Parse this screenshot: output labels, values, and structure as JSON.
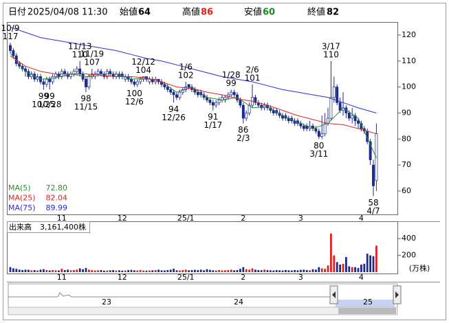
{
  "header": {
    "date_label": "日付",
    "datetime": "2025/04/08 11:30",
    "open_label": "始値",
    "open": 64,
    "high_label": "高値",
    "high": 86,
    "low_label": "安値",
    "low": 60,
    "close_label": "終値",
    "close": 82
  },
  "chart_data": [
    {
      "type": "candlestick",
      "categories": [
        null,
        null,
        null,
        null,
        null,
        null,
        null,
        null,
        null,
        null,
        null,
        null,
        null,
        null,
        null,
        null,
        null,
        "11",
        null,
        null,
        null,
        null,
        null,
        null,
        null,
        null,
        null,
        null,
        null,
        null,
        null,
        null,
        null,
        null,
        null,
        null,
        null,
        "12",
        null,
        null,
        null,
        null,
        null,
        null,
        null,
        null,
        null,
        null,
        null,
        null,
        null,
        null,
        null,
        null,
        null,
        null,
        null,
        null,
        "25/1",
        null,
        null,
        null,
        null,
        null,
        null,
        null,
        null,
        null,
        null,
        null,
        null,
        null,
        null,
        null,
        null,
        null,
        null,
        "2",
        null,
        null,
        null,
        null,
        null,
        null,
        null,
        null,
        null,
        null,
        null,
        null,
        null,
        null,
        null,
        null,
        null,
        null,
        "3",
        null,
        null,
        null,
        null,
        null,
        null,
        null,
        null,
        null,
        null,
        null,
        null,
        null,
        null,
        null,
        null,
        null,
        null,
        null,
        "4",
        null,
        null,
        null,
        null,
        null
      ],
      "candles": {
        "up_color": "#ffffff",
        "down_color": "#1c2a8c",
        "open": [
          116,
          114,
          112,
          109,
          108,
          107,
          106,
          104,
          105,
          103,
          104,
          102,
          101,
          103,
          102,
          104,
          105,
          104,
          106,
          105,
          104,
          105,
          106,
          107,
          105,
          103,
          100,
          104,
          104,
          105,
          106,
          105,
          104,
          106,
          105,
          104,
          105,
          105,
          103,
          104,
          103,
          102,
          101,
          102,
          103,
          104,
          102,
          103,
          102,
          103,
          102,
          101,
          100,
          99,
          98,
          97,
          96,
          98,
          99,
          101,
          100,
          99,
          98,
          98,
          97,
          96,
          95,
          94,
          93,
          94,
          95,
          95,
          96,
          97,
          98,
          97,
          95,
          93,
          88,
          90,
          93,
          96,
          94,
          93,
          92,
          93,
          92,
          91,
          91,
          90,
          89,
          89,
          88,
          88,
          87,
          87,
          86,
          85,
          85,
          84,
          85,
          84,
          83,
          81,
          82,
          86,
          88,
          96,
          100,
          94,
          91,
          92,
          90,
          88,
          89,
          87,
          86,
          84,
          83,
          79,
          70,
          64
        ],
        "high": [
          117,
          115,
          113,
          110,
          109,
          108,
          107,
          106,
          106,
          105,
          105,
          103,
          104,
          104,
          105,
          106,
          106,
          107,
          107,
          106,
          106,
          107,
          108,
          110,
          106,
          104,
          105,
          107,
          106,
          107,
          107,
          106,
          107,
          107,
          106,
          106,
          106,
          106,
          105,
          105,
          104,
          103,
          103,
          104,
          104,
          104,
          104,
          104,
          104,
          103,
          103,
          102,
          101,
          100,
          99,
          98,
          99,
          100,
          102,
          101,
          101,
          100,
          99,
          99,
          98,
          97,
          96,
          95,
          95,
          96,
          97,
          97,
          98,
          99,
          99,
          98,
          96,
          94,
          91,
          94,
          101,
          97,
          95,
          94,
          94,
          94,
          93,
          92,
          92,
          91,
          90,
          90,
          89,
          89,
          88,
          88,
          87,
          86,
          86,
          87,
          86,
          85,
          84,
          89,
          90,
          92,
          110,
          104,
          101,
          96,
          98,
          93,
          91,
          92,
          90,
          88,
          87,
          85,
          84,
          80,
          72,
          86
        ],
        "low": [
          113,
          111,
          108,
          107,
          106,
          104,
          103,
          103,
          102,
          102,
          101,
          99,
          100,
          99,
          101,
          103,
          103,
          103,
          104,
          103,
          103,
          104,
          105,
          104,
          102,
          98,
          99,
          103,
          103,
          104,
          104,
          103,
          103,
          104,
          103,
          103,
          103,
          103,
          102,
          102,
          101,
          100,
          100,
          101,
          102,
          102,
          101,
          101,
          101,
          101,
          100,
          99,
          98,
          97,
          94,
          95,
          95,
          97,
          98,
          99,
          98,
          97,
          96,
          96,
          95,
          94,
          93,
          91,
          92,
          93,
          94,
          94,
          95,
          96,
          96,
          94,
          92,
          86,
          87,
          89,
          92,
          93,
          92,
          91,
          91,
          91,
          90,
          89,
          89,
          88,
          87,
          87,
          86,
          86,
          85,
          85,
          84,
          83,
          83,
          83,
          83,
          82,
          80,
          80,
          81,
          85,
          87,
          94,
          93,
          90,
          89,
          88,
          87,
          86,
          85,
          84,
          83,
          82,
          78,
          70,
          58,
          60
        ],
        "close": [
          114,
          112,
          109,
          108,
          107,
          106,
          104,
          105,
          103,
          104,
          102,
          101,
          103,
          102,
          104,
          105,
          104,
          106,
          105,
          104,
          105,
          106,
          107,
          105,
          103,
          100,
          104,
          105,
          105,
          106,
          105,
          104,
          106,
          105,
          104,
          105,
          104,
          104,
          104,
          103,
          102,
          101,
          102,
          103,
          104,
          103,
          103,
          102,
          103,
          102,
          101,
          100,
          99,
          98,
          97,
          96,
          98,
          99,
          100,
          100,
          99,
          98,
          97,
          97,
          96,
          95,
          94,
          93,
          94,
          95,
          96,
          96,
          97,
          98,
          97,
          95,
          93,
          88,
          90,
          93,
          96,
          94,
          93,
          92,
          93,
          92,
          91,
          90,
          90,
          89,
          88,
          88,
          87,
          87,
          86,
          86,
          85,
          84,
          84,
          85,
          84,
          83,
          81,
          82,
          86,
          88,
          96,
          100,
          94,
          91,
          92,
          90,
          88,
          89,
          87,
          86,
          84,
          83,
          79,
          72,
          62,
          82
        ]
      },
      "ma": {
        "x": [
          0,
          5,
          10,
          15,
          20,
          25,
          30,
          35,
          40,
          45,
          50,
          55,
          60,
          65,
          70,
          75,
          80,
          85,
          90,
          95,
          100,
          105,
          110,
          115,
          121
        ],
        "series": [
          {
            "name": "MA(5)",
            "color": "#2e8b2e",
            "value_label": "72.80",
            "values": [
              113,
              106,
              103,
              103.5,
              105,
              104,
              105,
              105,
              103,
              103.5,
              102,
              98,
              100,
              96,
              95,
              96,
              92,
              92.5,
              89,
              86.5,
              84,
              86,
              92,
              88,
              72.8
            ]
          },
          {
            "name": "MA(25)",
            "color": "#e02020",
            "value_label": "82.04",
            "values": [
              112,
              108,
              106,
              105,
              105,
              105,
              104.5,
              104,
              104,
              103.5,
              102,
              100,
              99.5,
              98,
              97,
              95.5,
              94.5,
              93,
              91,
              89,
              87.5,
              86,
              85.5,
              84,
              82.04
            ]
          },
          {
            "name": "MA(75)",
            "color": "#2a2ae0",
            "value_label": "89.99",
            "values": [
              123,
              121,
              119,
              118,
              117,
              116,
              115,
              114,
              112.5,
              111,
              110,
              108.5,
              107,
              105.5,
              104,
              103,
              102,
              100.5,
              99,
              98,
              97,
              96,
              94,
              92,
              89.99
            ]
          }
        ]
      },
      "annotations": [
        {
          "date": "10/9",
          "value": 117,
          "index": 0,
          "side": "above"
        },
        {
          "date": "10/25",
          "value": 99,
          "index": 11,
          "side": "below"
        },
        {
          "date": "10/28",
          "value": 99,
          "index": 13,
          "side": "below"
        },
        {
          "date": "11/13",
          "value": 110,
          "index": 23,
          "side": "above"
        },
        {
          "date": "11/15",
          "value": 98,
          "index": 25,
          "side": "below"
        },
        {
          "date": "11/19",
          "value": 107,
          "index": 27,
          "side": "above"
        },
        {
          "date": "12/6",
          "value": 100,
          "index": 41,
          "side": "below"
        },
        {
          "date": "12/12",
          "value": 104,
          "index": 44,
          "side": "above"
        },
        {
          "date": "12/26",
          "value": 94,
          "index": 54,
          "side": "below"
        },
        {
          "date": "1/6",
          "value": 102,
          "index": 58,
          "side": "above"
        },
        {
          "date": "1/17",
          "value": 91,
          "index": 67,
          "side": "below"
        },
        {
          "date": "1/28",
          "value": 99,
          "index": 73,
          "side": "above"
        },
        {
          "date": "2/3",
          "value": 86,
          "index": 77,
          "side": "below"
        },
        {
          "date": "2/6",
          "value": 101,
          "index": 80,
          "side": "above"
        },
        {
          "date": "3/11",
          "value": 80,
          "index": 102,
          "side": "below"
        },
        {
          "date": "3/17",
          "value": 110,
          "index": 106,
          "side": "above"
        },
        {
          "date": "4/7",
          "value": 58,
          "index": 120,
          "side": "below"
        }
      ],
      "ylim": [
        51,
        125
      ],
      "yticks": [
        60,
        70,
        80,
        90,
        100,
        110,
        120
      ]
    },
    {
      "type": "bar",
      "title": "出来高",
      "total_label": "3,161,400株",
      "unit": "(万株)",
      "up_color": "#e02020",
      "down_color": "#1c2a8c",
      "flat_color": "#999999",
      "categories": [
        null,
        null,
        null,
        null,
        null,
        null,
        null,
        null,
        null,
        null,
        null,
        null,
        null,
        null,
        null,
        null,
        null,
        "11",
        null,
        null,
        null,
        null,
        null,
        null,
        null,
        null,
        null,
        null,
        null,
        null,
        null,
        null,
        null,
        null,
        null,
        null,
        null,
        "12",
        null,
        null,
        null,
        null,
        null,
        null,
        null,
        null,
        null,
        null,
        null,
        null,
        null,
        null,
        null,
        null,
        null,
        null,
        null,
        null,
        "25/1",
        null,
        null,
        null,
        null,
        null,
        null,
        null,
        null,
        null,
        null,
        null,
        null,
        null,
        null,
        null,
        null,
        null,
        null,
        "2",
        null,
        null,
        null,
        null,
        null,
        null,
        null,
        null,
        null,
        null,
        null,
        null,
        null,
        null,
        null,
        null,
        null,
        null,
        "3",
        null,
        null,
        null,
        null,
        null,
        null,
        null,
        null,
        null,
        null,
        null,
        null,
        null,
        null,
        null,
        null,
        null,
        null,
        null,
        "4",
        null,
        null,
        null,
        null,
        null
      ],
      "values": [
        60,
        45,
        40,
        30,
        25,
        30,
        28,
        22,
        25,
        20,
        30,
        35,
        25,
        20,
        25,
        22,
        20,
        40,
        25,
        30,
        22,
        25,
        30,
        45,
        35,
        50,
        30,
        25,
        20,
        22,
        25,
        18,
        20,
        22,
        25,
        20,
        22,
        18,
        20,
        25,
        28,
        22,
        20,
        25,
        20,
        18,
        20,
        22,
        25,
        30,
        22,
        20,
        25,
        30,
        40,
        22,
        20,
        25,
        30,
        22,
        25,
        28,
        25,
        30,
        22,
        35,
        28,
        22,
        20,
        25,
        20,
        22,
        25,
        30,
        22,
        25,
        40,
        60,
        35,
        30,
        45,
        30,
        25,
        22,
        30,
        25,
        22,
        20,
        25,
        22,
        20,
        25,
        22,
        20,
        25,
        22,
        28,
        30,
        25,
        22,
        35,
        30,
        60,
        45,
        40,
        80,
        460,
        200,
        120,
        90,
        100,
        180,
        70,
        60,
        60,
        50,
        90,
        100,
        220,
        200,
        190,
        316
      ],
      "ylim": [
        0,
        590
      ],
      "yticks": [
        200,
        400
      ]
    }
  ],
  "navigator": {
    "labels": [
      "23",
      "24",
      "25"
    ]
  }
}
